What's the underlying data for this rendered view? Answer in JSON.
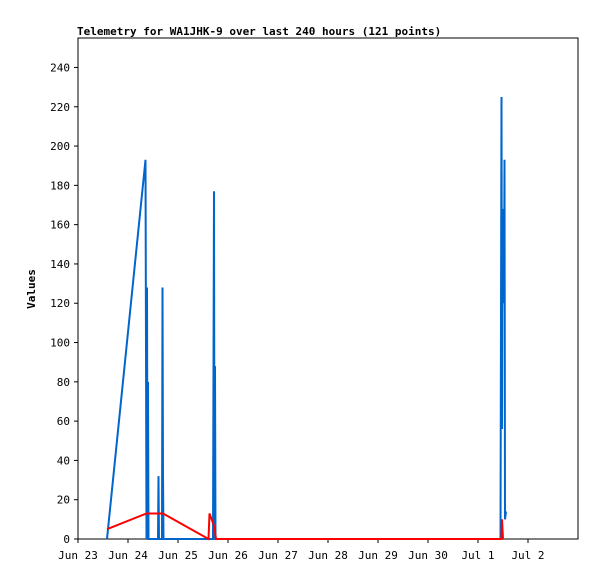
{
  "chart_data": {
    "type": "line",
    "title": "Telemetry for WA1JHK-9 over last 240 hours (121 points)",
    "xlabel": "",
    "ylabel": "Values",
    "xlim": [
      23.0,
      33.0
    ],
    "ylim": [
      0,
      255
    ],
    "x_ticks": [
      {
        "value": 23,
        "label": "Jun 23"
      },
      {
        "value": 24,
        "label": "Jun 24"
      },
      {
        "value": 25,
        "label": "Jun 25"
      },
      {
        "value": 26,
        "label": "Jun 26"
      },
      {
        "value": 27,
        "label": "Jun 27"
      },
      {
        "value": 28,
        "label": "Jun 28"
      },
      {
        "value": 29,
        "label": "Jun 29"
      },
      {
        "value": 30,
        "label": "Jun 30"
      },
      {
        "value": 31,
        "label": "Jul 1"
      },
      {
        "value": 32,
        "label": "Jul 2"
      }
    ],
    "y_ticks": [
      0,
      20,
      40,
      60,
      80,
      100,
      120,
      140,
      160,
      180,
      200,
      220,
      240
    ],
    "grid": false,
    "legend": "none",
    "series": [
      {
        "color": "#0066cc",
        "points": [
          [
            23.58,
            0
          ],
          [
            24.35,
            193
          ],
          [
            24.37,
            0
          ],
          [
            24.38,
            128
          ],
          [
            24.39,
            0
          ],
          [
            24.4,
            80
          ],
          [
            24.41,
            0
          ],
          [
            24.6,
            0
          ],
          [
            24.61,
            32
          ],
          [
            24.62,
            0
          ],
          [
            24.68,
            0
          ],
          [
            24.69,
            128
          ],
          [
            24.7,
            32
          ],
          [
            24.71,
            0
          ],
          [
            25.7,
            0
          ],
          [
            25.72,
            177
          ],
          [
            25.73,
            0
          ],
          [
            25.74,
            88
          ],
          [
            25.75,
            0
          ],
          [
            31.45,
            0
          ],
          [
            31.46,
            112
          ],
          [
            31.47,
            225
          ],
          [
            31.48,
            56
          ],
          [
            31.49,
            168
          ],
          [
            31.5,
            128
          ],
          [
            31.51,
            160
          ],
          [
            31.52,
            120
          ],
          [
            31.53,
            193
          ],
          [
            31.54,
            10
          ],
          [
            31.56,
            14
          ]
        ]
      },
      {
        "color": "#ff0000",
        "points": [
          [
            23.58,
            5
          ],
          [
            24.37,
            13
          ],
          [
            24.7,
            13
          ],
          [
            25.61,
            0
          ],
          [
            25.63,
            13
          ],
          [
            25.73,
            6
          ],
          [
            25.76,
            0
          ],
          [
            31.47,
            0
          ],
          [
            31.48,
            10
          ],
          [
            31.5,
            0
          ]
        ]
      }
    ]
  }
}
